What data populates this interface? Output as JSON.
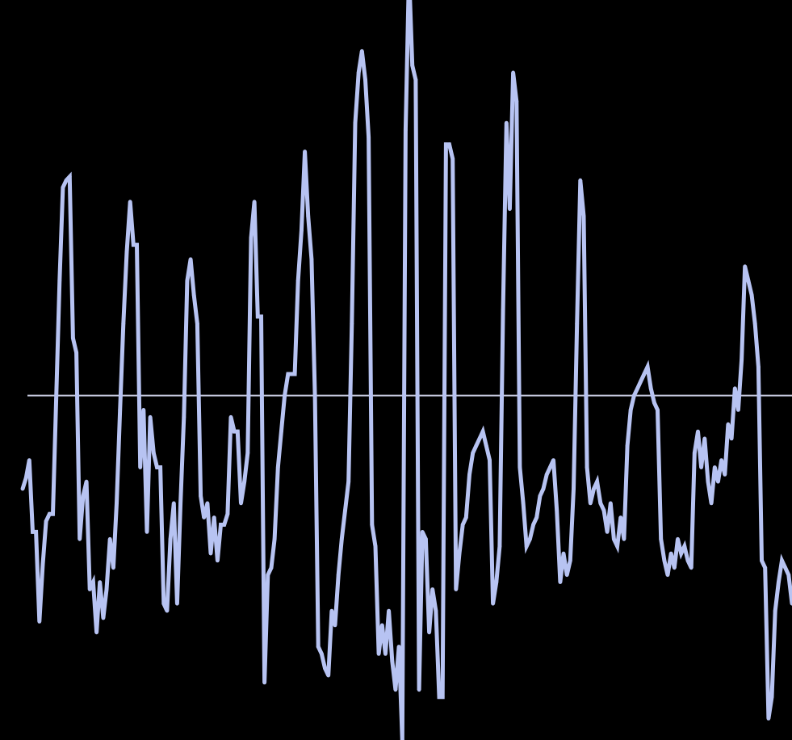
{
  "chart_data": {
    "type": "line",
    "title": "",
    "xlabel": "",
    "ylabel": "",
    "grid": false,
    "legend": "none",
    "ylim": [
      -480,
      540
    ],
    "xlim": [
      0,
      240
    ],
    "baseline": 0,
    "colors": {
      "background": "#000000",
      "line": "#b7c3f2",
      "baseline": "#c8cbe0"
    },
    "series": [
      {
        "values": [
          -130,
          -115,
          -90,
          -190,
          -190,
          -315,
          -235,
          -175,
          -165,
          -165,
          -5,
          160,
          290,
          300,
          305,
          80,
          60,
          -200,
          -140,
          -120,
          -270,
          -260,
          -330,
          -260,
          -310,
          -270,
          -200,
          -240,
          -150,
          -20,
          100,
          200,
          270,
          210,
          210,
          -100,
          -20,
          -190,
          -30,
          -80,
          -100,
          -100,
          -290,
          -300,
          -200,
          -150,
          -290,
          -150,
          -30,
          160,
          190,
          140,
          100,
          -140,
          -170,
          -150,
          -220,
          -170,
          -230,
          -180,
          -180,
          -165,
          -30,
          -50,
          -50,
          -150,
          -120,
          -80,
          220,
          270,
          110,
          110,
          -400,
          -250,
          -240,
          -200,
          -100,
          -50,
          0,
          30,
          30,
          30,
          160,
          230,
          340,
          250,
          190,
          0,
          -350,
          -360,
          -380,
          -390,
          -300,
          -320,
          -250,
          -200,
          -160,
          -120,
          100,
          380,
          450,
          480,
          440,
          360,
          -180,
          -210,
          -360,
          -320,
          -360,
          -300,
          -370,
          -410,
          -350,
          -480,
          370,
          590,
          460,
          440,
          -410,
          -190,
          -200,
          -330,
          -270,
          -300,
          -420,
          -420,
          350,
          350,
          330,
          -270,
          -220,
          -180,
          -170,
          -110,
          -80,
          -70,
          -60,
          -50,
          -70,
          -90,
          -290,
          -260,
          -210,
          120,
          380,
          260,
          450,
          410,
          -100,
          -150,
          -210,
          -200,
          -180,
          -170,
          -140,
          -130,
          -110,
          -100,
          -90,
          -160,
          -260,
          -220,
          -250,
          -230,
          -130,
          100,
          300,
          250,
          -100,
          -150,
          -130,
          -120,
          -150,
          -160,
          -190,
          -150,
          -200,
          -210,
          -170,
          -200,
          -70,
          -20,
          0,
          10,
          20,
          30,
          40,
          10,
          -10,
          -20,
          -200,
          -230,
          -250,
          -220,
          -240,
          -200,
          -220,
          -210,
          -230,
          -240,
          -80,
          -50,
          -100,
          -60,
          -120,
          -150,
          -100,
          -120,
          -90,
          -110,
          -40,
          -60,
          10,
          -20,
          50,
          180,
          160,
          140,
          100,
          40,
          -230,
          -240,
          -450,
          -420,
          -300,
          -260,
          -230,
          -240,
          -250,
          -290
        ]
      }
    ]
  }
}
